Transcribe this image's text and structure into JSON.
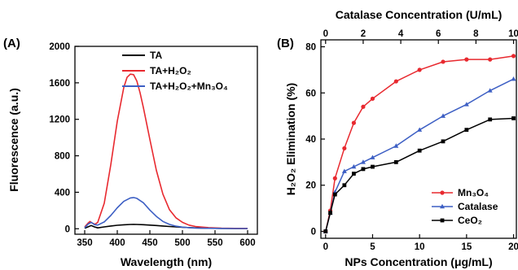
{
  "chart_data": [
    {
      "panel": "(A)",
      "type": "line",
      "xlabel": "Wavelength (nm)",
      "ylabel": "Fluorescence (a.u.)",
      "xlim": [
        335,
        615
      ],
      "ylim": [
        -60,
        2000
      ],
      "xticks": [
        350,
        400,
        450,
        500,
        550,
        600
      ],
      "yticks": [
        0,
        400,
        800,
        1200,
        1600,
        2000
      ],
      "legend": "top-right",
      "series": [
        {
          "name": "TA",
          "color": "#000000",
          "x": [
            350,
            355,
            360,
            365,
            370,
            380,
            390,
            400,
            410,
            420,
            425,
            430,
            440,
            450,
            460,
            470,
            480,
            490,
            500,
            520,
            540,
            560,
            580,
            600
          ],
          "y": [
            5,
            20,
            35,
            20,
            10,
            20,
            30,
            38,
            43,
            47,
            48,
            47,
            44,
            40,
            35,
            30,
            25,
            20,
            16,
            10,
            6,
            4,
            2,
            2
          ]
        },
        {
          "name": "TA+H₂O₂",
          "color": "#e8292f",
          "x": [
            350,
            355,
            358,
            362,
            366,
            370,
            380,
            390,
            400,
            410,
            415,
            420,
            425,
            430,
            435,
            440,
            450,
            460,
            470,
            480,
            490,
            500,
            510,
            520,
            540,
            560,
            580,
            600
          ],
          "y": [
            20,
            60,
            80,
            60,
            50,
            70,
            280,
            700,
            1180,
            1550,
            1660,
            1695,
            1690,
            1620,
            1490,
            1330,
            980,
            640,
            380,
            210,
            120,
            70,
            40,
            25,
            12,
            6,
            4,
            3
          ]
        },
        {
          "name": "TA+H₂O₂+Mn₃O₄",
          "color": "#3d5fc4",
          "x": [
            350,
            355,
            360,
            365,
            370,
            380,
            390,
            400,
            410,
            420,
            425,
            430,
            440,
            450,
            460,
            470,
            480,
            490,
            500,
            510,
            520,
            540,
            560,
            580,
            600
          ],
          "y": [
            10,
            50,
            70,
            45,
            40,
            75,
            145,
            230,
            300,
            338,
            342,
            333,
            285,
            205,
            135,
            80,
            48,
            28,
            18,
            12,
            8,
            5,
            3,
            2,
            2
          ]
        }
      ]
    },
    {
      "panel": "(B)",
      "type": "line",
      "xlabel": "NPs Concentration (μg/mL)",
      "x2label": "Catalase Concentration (U/mL)",
      "ylabel": "H₂O₂ Elimination (%)",
      "xlim": [
        -0.5,
        20.3
      ],
      "x2lim": [
        -0.25,
        10.15
      ],
      "ylim": [
        -3,
        83
      ],
      "xticks": [
        0,
        5,
        10,
        15,
        20
      ],
      "x2ticks": [
        0,
        2,
        4,
        6,
        8,
        10
      ],
      "yticks": [
        0,
        20,
        40,
        60,
        80
      ],
      "legend": "bottom-right",
      "series": [
        {
          "name": "Mn₃O₄",
          "color": "#e8292f",
          "marker": "circle",
          "x": [
            0,
            0.5,
            1,
            2,
            3,
            4,
            5,
            7.5,
            10,
            12.5,
            15,
            17.5,
            20
          ],
          "y": [
            0,
            9,
            23,
            36,
            47,
            54,
            57.5,
            65,
            70,
            73.5,
            74.5,
            74.5,
            76
          ]
        },
        {
          "name": "Catalase",
          "color": "#3d5fc4",
          "marker": "triangle",
          "x": [
            0,
            0.5,
            1,
            2,
            3,
            4,
            5,
            7.5,
            10,
            12.5,
            15,
            17.5,
            20
          ],
          "y": [
            0,
            8,
            17,
            26,
            28,
            30,
            32,
            37,
            44,
            50,
            55,
            61,
            66
          ]
        },
        {
          "name": "CeO₂",
          "color": "#000000",
          "marker": "square",
          "x": [
            0,
            0.5,
            1,
            2,
            3,
            4,
            5,
            7.5,
            10,
            12.5,
            15,
            17.5,
            20
          ],
          "y": [
            0,
            8,
            16,
            20,
            25,
            27,
            28,
            30,
            35,
            39,
            44,
            48.5,
            49
          ]
        }
      ]
    }
  ]
}
